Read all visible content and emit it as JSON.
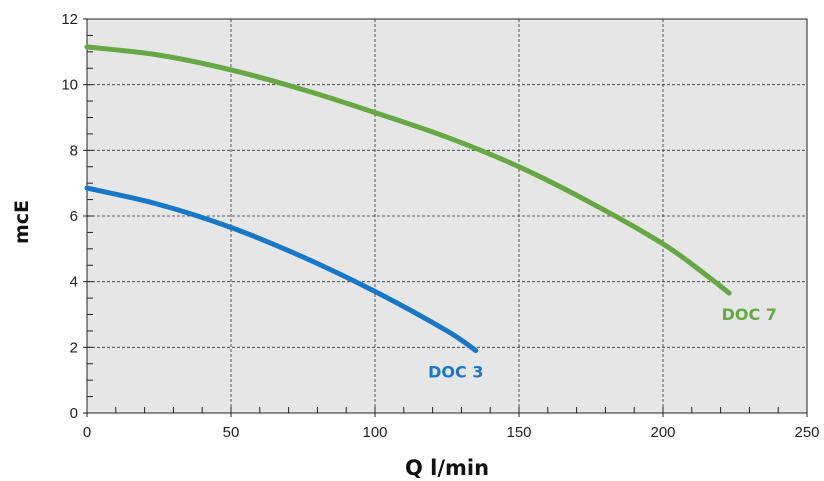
{
  "chart_data": {
    "type": "line",
    "xlabel": "Q l/min",
    "ylabel": "mcE",
    "xlim": [
      0,
      250
    ],
    "ylim": [
      0,
      12
    ],
    "x_ticks": [
      0,
      50,
      100,
      150,
      200,
      250
    ],
    "y_ticks": [
      0,
      2,
      4,
      6,
      8,
      10,
      12
    ],
    "x_tick_labels": [
      "0",
      "50",
      "100",
      "150",
      "200",
      "250"
    ],
    "y_tick_labels": [
      "0",
      "2",
      "4",
      "6",
      "8",
      "10",
      "12"
    ],
    "grid": true,
    "background": "#e6e6e6",
    "series": [
      {
        "name": "DOC 3",
        "color": "#1878c8",
        "points": [
          [
            0,
            6.85
          ],
          [
            25,
            6.35
          ],
          [
            50,
            5.65
          ],
          [
            75,
            4.75
          ],
          [
            100,
            3.7
          ],
          [
            125,
            2.5
          ],
          [
            135,
            1.9
          ]
        ]
      },
      {
        "name": "DOC 7",
        "color": "#65a844",
        "points": [
          [
            0,
            11.15
          ],
          [
            25,
            10.9
          ],
          [
            50,
            10.45
          ],
          [
            75,
            9.85
          ],
          [
            100,
            9.15
          ],
          [
            125,
            8.4
          ],
          [
            150,
            7.5
          ],
          [
            175,
            6.4
          ],
          [
            200,
            5.15
          ],
          [
            215,
            4.2
          ],
          [
            223,
            3.65
          ]
        ]
      }
    ]
  }
}
